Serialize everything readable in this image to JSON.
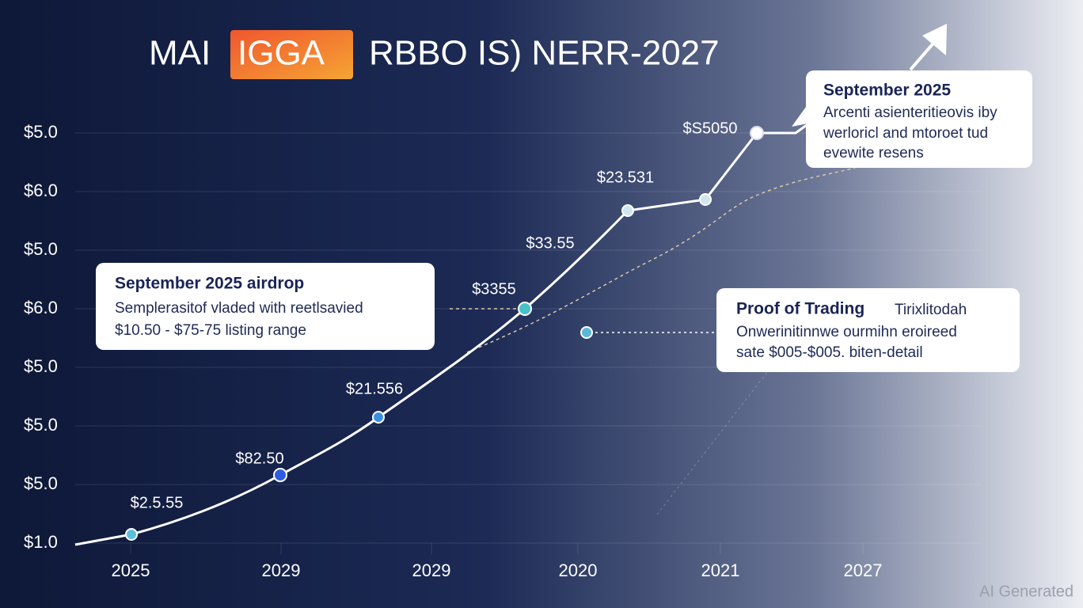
{
  "title": {
    "part1": "MAI",
    "highlight": "IGGA",
    "part2": "RBBO IS) NERR-2027"
  },
  "y_axis_labels": [
    "$5.0",
    "$6.0",
    "$5.0",
    "$6.0",
    "$5.0",
    "$5.0",
    "$5.0",
    "$1.0"
  ],
  "x_axis_labels": [
    "2025",
    "2029",
    "2029",
    "2020",
    "2021",
    "2027"
  ],
  "point_labels": [
    "$2.5.55",
    "$82.50",
    "$21.556",
    "$3355",
    "$33.55",
    "$23.531",
    "$S5050"
  ],
  "callouts": [
    {
      "title": "September 2025 airdrop",
      "lines": [
        "Semplerasitof vladed with reetlsavied",
        "$10.50 - $75-75 listing range"
      ]
    },
    {
      "title": "September 2025",
      "lines": [
        "Arcenti asienteritieovis iby",
        "werloricl and mtoroet tud",
        "evewite resens"
      ]
    },
    {
      "title": "Proof of Trading",
      "title_suffix": "Tirixlitodah",
      "lines": [
        "Onwerinitinnwe ourmihn eroireed",
        "sate $005-$005. biten-detail"
      ]
    }
  ],
  "watermark": "AI Generated"
}
